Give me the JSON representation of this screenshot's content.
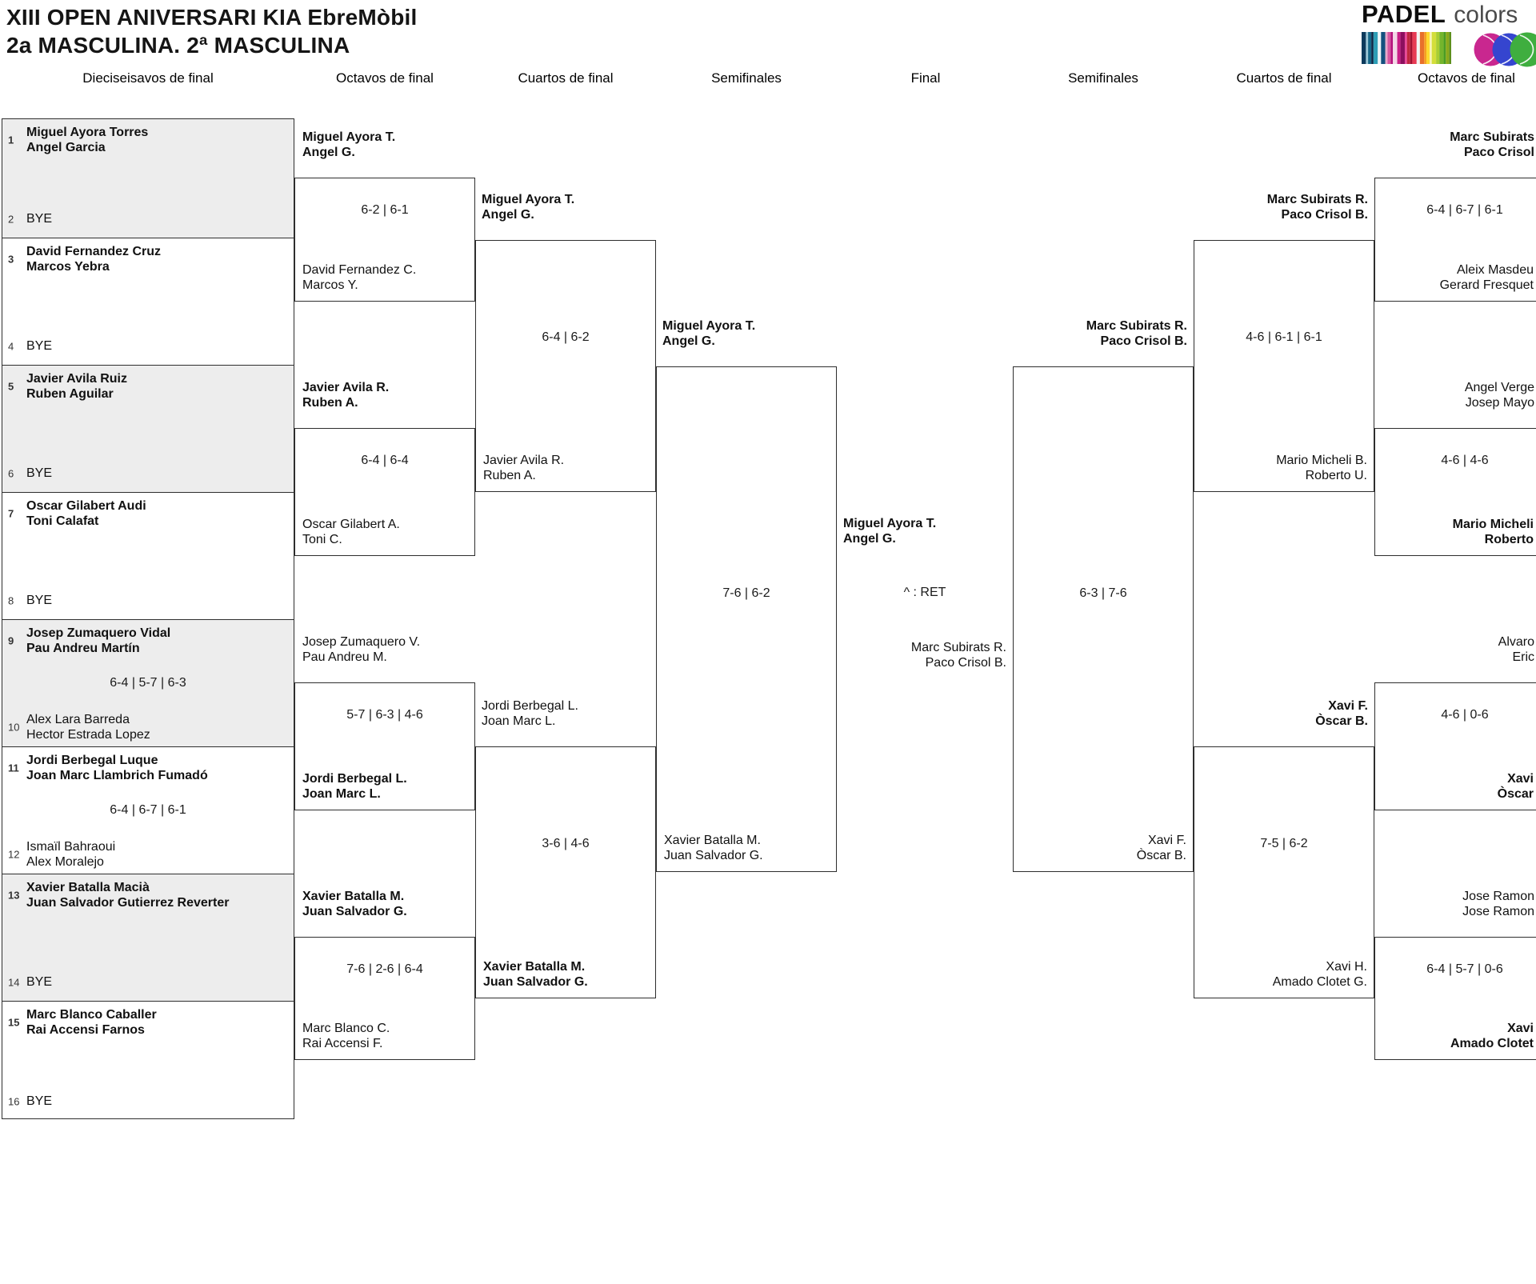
{
  "title": {
    "line1": "XIII OPEN ANIVERSARI KIA EbreMòbil",
    "line2": "2a MASCULINA. 2ª MASCULINA"
  },
  "logo": {
    "brand": "PADEL",
    "word": "colors",
    "ball_colors": [
      "#c9278f",
      "#3545cf",
      "#3fae3f"
    ],
    "stripes": [
      "#0d3a5c",
      "#9cc8d8",
      "#16688a",
      "#0a2746",
      "#2d9db5",
      "#eef6f8",
      "#14507e",
      "#e9a8c9",
      "#d6569f",
      "#b5117c",
      "#f3d7e6",
      "#c91f86",
      "#8c0f5e",
      "#e84a9a",
      "#c0263f",
      "#a11030",
      "#e73a53",
      "#f3f3f3",
      "#e8702b",
      "#f59d1e",
      "#fdd92f",
      "#f8f4b5",
      "#d3de3a",
      "#a8cd32",
      "#74b52c",
      "#4a9c23",
      "#8aaa1a",
      "#5d8f1d"
    ]
  },
  "headers": [
    "Dieciseisavos de final",
    "Octavos de final",
    "Cuartos de final",
    "Semifinales",
    "Final",
    "Semifinales",
    "Cuartos de final",
    "Octavos de final"
  ],
  "left": {
    "r16": [
      {
        "seed": "1",
        "name1": "Miguel Ayora Torres",
        "name2": "Angel Garcia"
      },
      {
        "seed": "2",
        "name1": "BYE"
      },
      {
        "seed": "3",
        "name1": "David Fernandez Cruz",
        "name2": "Marcos Yebra"
      },
      {
        "seed": "4",
        "name1": "BYE"
      },
      {
        "seed": "5",
        "name1": "Javier Avila Ruiz",
        "name2": "Ruben Aguilar"
      },
      {
        "seed": "6",
        "name1": "BYE"
      },
      {
        "seed": "7",
        "name1": "Oscar Gilabert Audi",
        "name2": "Toni Calafat"
      },
      {
        "seed": "8",
        "name1": "BYE"
      },
      {
        "seed": "9",
        "name1": "Josep Zumaquero Vidal",
        "name2": "Pau Andreu Martín"
      },
      {
        "seed": "10",
        "name1": "Alex Lara Barreda",
        "name2": "Hector Estrada Lopez"
      },
      {
        "seed": "11",
        "name1": "Jordi Berbegal Luque",
        "name2": "Joan Marc Llambrich Fumadó"
      },
      {
        "seed": "12",
        "name1": "Ismaïl Bahraoui",
        "name2": "Alex Moralejo"
      },
      {
        "seed": "13",
        "name1": "Xavier Batalla Macià",
        "name2": "Juan Salvador Gutierrez Reverter"
      },
      {
        "seed": "14",
        "name1": "BYE"
      },
      {
        "seed": "15",
        "name1": "Marc Blanco Caballer",
        "name2": "Rai Accensi Farnos"
      },
      {
        "seed": "16",
        "name1": "BYE"
      }
    ],
    "r16_scores": {
      "m5": "6-4 | 5-7 | 6-3",
      "m6": "6-4 | 6-7 | 6-1"
    },
    "r8": [
      {
        "top1": "Miguel Ayora T.",
        "top2": "Angel G.",
        "score": "6-2 | 6-1",
        "bot1": "David Fernandez C.",
        "bot2": "Marcos Y."
      },
      {
        "top1": "Javier Avila R.",
        "top2": "Ruben A.",
        "score": "6-4 | 6-4",
        "bot1": "Oscar Gilabert A.",
        "bot2": "Toni C."
      },
      {
        "top1": "Josep Zumaquero V.",
        "top2": "Pau Andreu M.",
        "score": "5-7 | 6-3 | 4-6",
        "bot1": "Jordi Berbegal L.",
        "bot2": "Joan Marc L."
      },
      {
        "top1": "Xavier Batalla M.",
        "top2": "Juan Salvador G.",
        "score": "7-6 | 2-6 | 6-4",
        "bot1": "Marc Blanco C.",
        "bot2": "Rai Accensi F."
      }
    ],
    "qf": [
      {
        "top1": "Miguel Ayora T.",
        "top2": "Angel G.",
        "score": "6-4 | 6-2",
        "bot1": "Javier Avila R.",
        "bot2": "Ruben A."
      },
      {
        "top1": "Jordi Berbegal L.",
        "top2": "Joan Marc L.",
        "score": "3-6 | 4-6",
        "bot1": "Xavier Batalla M.",
        "bot2": "Juan Salvador G."
      }
    ],
    "sf": {
      "top1": "Miguel Ayora T.",
      "top2": "Angel G.",
      "score": "7-6 | 6-2",
      "bot1": "Xavier Batalla M.",
      "bot2": "Juan Salvador G."
    }
  },
  "final": {
    "champ1": "Miguel Ayora T.",
    "champ2": "Angel G.",
    "note": "^ : RET",
    "runner1": "Marc Subirats R.",
    "runner2": "Paco Crisol B."
  },
  "right": {
    "sf": {
      "top1": "Marc Subirats R.",
      "top2": "Paco Crisol B.",
      "score": "6-3 | 7-6",
      "bot1": "Xavi F.",
      "bot2": "Òscar B."
    },
    "qf": [
      {
        "top1": "Marc Subirats R.",
        "top2": "Paco Crisol B.",
        "score": "4-6 | 6-1 | 6-1",
        "bot1": "Mario Micheli B.",
        "bot2": "Roberto U."
      },
      {
        "top1": "Xavi F.",
        "top2": "Òscar B.",
        "score": "7-5 | 6-2",
        "bot1": "Xavi H.",
        "bot2": "Amado Clotet G."
      }
    ],
    "r8": [
      {
        "top1": "Marc Subirats",
        "top2": "Paco Crisol",
        "score": "6-4 | 6-7 | 6-1",
        "bot1": "Aleix Masdeu",
        "bot2": "Gerard Fresquet"
      },
      {
        "top1": "Angel Verge",
        "top2": "Josep Mayo",
        "score": "4-6 | 4-6",
        "bot1": "Mario Micheli",
        "bot2": "Roberto"
      },
      {
        "top1": "Alvaro",
        "top2": "Eric",
        "score": "4-6 | 0-6",
        "bot1": "Xavi",
        "bot2": "Òscar"
      },
      {
        "top1": "Jose Ramon",
        "top2": "Jose Ramon",
        "score": "6-4 | 5-7 | 0-6",
        "bot1": "Xavi",
        "bot2": "Amado Clotet"
      }
    ]
  }
}
